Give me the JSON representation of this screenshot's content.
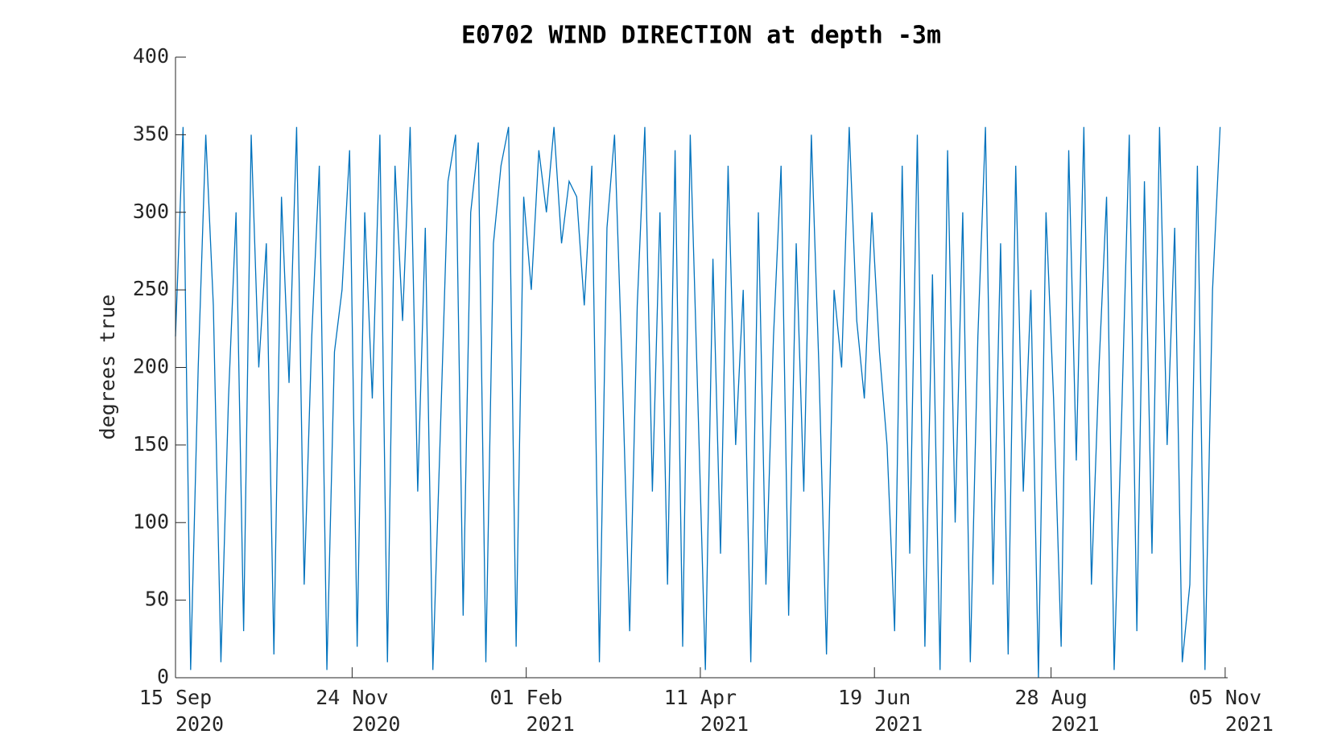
{
  "chart_data": {
    "type": "line",
    "title": "E0702 WIND DIRECTION at depth -3m",
    "ylabel": "degrees true",
    "x": [
      "2020-09-15",
      "2020-09-18",
      "2020-09-21",
      "2020-09-24",
      "2020-09-27",
      "2020-09-30",
      "2020-10-03",
      "2020-10-06",
      "2020-10-09",
      "2020-10-12",
      "2020-10-15",
      "2020-10-18",
      "2020-10-21",
      "2020-10-24",
      "2020-10-27",
      "2020-10-30",
      "2020-11-02",
      "2020-11-05",
      "2020-11-08",
      "2020-11-11",
      "2020-11-14",
      "2020-11-17",
      "2020-11-20",
      "2020-11-23",
      "2020-11-26",
      "2020-11-29",
      "2020-12-02",
      "2020-12-05",
      "2020-12-08",
      "2020-12-11",
      "2020-12-14",
      "2020-12-17",
      "2020-12-20",
      "2020-12-23",
      "2020-12-26",
      "2020-12-29",
      "2021-01-01",
      "2021-01-04",
      "2021-01-07",
      "2021-01-10",
      "2021-01-13",
      "2021-01-16",
      "2021-01-19",
      "2021-01-22",
      "2021-01-25",
      "2021-01-28",
      "2021-01-31",
      "2021-02-03",
      "2021-02-06",
      "2021-02-09",
      "2021-02-12",
      "2021-02-15",
      "2021-02-18",
      "2021-02-21",
      "2021-02-24",
      "2021-02-27",
      "2021-03-02",
      "2021-03-05",
      "2021-03-08",
      "2021-03-11",
      "2021-03-14",
      "2021-03-17",
      "2021-03-20",
      "2021-03-23",
      "2021-03-26",
      "2021-03-29",
      "2021-04-01",
      "2021-04-04",
      "2021-04-07",
      "2021-04-10",
      "2021-04-13",
      "2021-04-16",
      "2021-04-19",
      "2021-04-22",
      "2021-04-25",
      "2021-04-28",
      "2021-05-01",
      "2021-05-04",
      "2021-05-07",
      "2021-05-10",
      "2021-05-13",
      "2021-05-16",
      "2021-05-19",
      "2021-05-22",
      "2021-05-25",
      "2021-05-28",
      "2021-05-31",
      "2021-06-03",
      "2021-06-06",
      "2021-06-09",
      "2021-06-12",
      "2021-06-15",
      "2021-06-18",
      "2021-06-21",
      "2021-06-24",
      "2021-06-27",
      "2021-06-30",
      "2021-07-03",
      "2021-07-06",
      "2021-07-09",
      "2021-07-12",
      "2021-07-15",
      "2021-07-18",
      "2021-07-21",
      "2021-07-24",
      "2021-07-27",
      "2021-07-30",
      "2021-08-02",
      "2021-08-05",
      "2021-08-08",
      "2021-08-11",
      "2021-08-14",
      "2021-08-17",
      "2021-08-20",
      "2021-08-23",
      "2021-08-26",
      "2021-08-29",
      "2021-09-01",
      "2021-09-04",
      "2021-09-07",
      "2021-09-10",
      "2021-09-13",
      "2021-09-16",
      "2021-09-19",
      "2021-09-22",
      "2021-09-25",
      "2021-09-28",
      "2021-10-01",
      "2021-10-04",
      "2021-10-07",
      "2021-10-10",
      "2021-10-13",
      "2021-10-16",
      "2021-10-19",
      "2021-10-22",
      "2021-10-25",
      "2021-10-28",
      "2021-10-31",
      "2021-11-03"
    ],
    "series": [
      {
        "name": "wind direction",
        "color": "#0072bd",
        "values": [
          220,
          355,
          5,
          200,
          350,
          240,
          10,
          180,
          300,
          30,
          350,
          200,
          280,
          15,
          310,
          190,
          355,
          60,
          220,
          330,
          5,
          210,
          250,
          340,
          20,
          300,
          180,
          350,
          10,
          330,
          230,
          355,
          120,
          290,
          5,
          160,
          320,
          350,
          40,
          300,
          345,
          10,
          280,
          330,
          355,
          20,
          310,
          250,
          340,
          300,
          355,
          280,
          320,
          310,
          240,
          330,
          10,
          290,
          350,
          200,
          30,
          240,
          355,
          120,
          300,
          60,
          340,
          20,
          350,
          180,
          5,
          270,
          80,
          330,
          150,
          250,
          10,
          300,
          60,
          220,
          330,
          40,
          280,
          120,
          350,
          200,
          15,
          250,
          200,
          355,
          230,
          180,
          300,
          210,
          150,
          30,
          330,
          80,
          350,
          20,
          260,
          5,
          340,
          100,
          300,
          10,
          220,
          355,
          60,
          280,
          15,
          330,
          120,
          250,
          0,
          300,
          180,
          20,
          340,
          140,
          355,
          60,
          200,
          310,
          5,
          170,
          350,
          30,
          320,
          80,
          355,
          150,
          290,
          10,
          60,
          330,
          5,
          250,
          355
        ]
      }
    ],
    "xlim": [
      "2020-09-15",
      "2021-11-06"
    ],
    "xticks": [
      {
        "value": "2020-09-15",
        "label": [
          "15 Sep",
          "2020"
        ]
      },
      {
        "value": "2020-11-24",
        "label": [
          "24 Nov",
          "2020"
        ]
      },
      {
        "value": "2021-02-01",
        "label": [
          "01 Feb",
          "2021"
        ]
      },
      {
        "value": "2021-04-11",
        "label": [
          "11 Apr",
          "2021"
        ]
      },
      {
        "value": "2021-06-19",
        "label": [
          "19 Jun",
          "2021"
        ]
      },
      {
        "value": "2021-08-28",
        "label": [
          "28 Aug",
          "2021"
        ]
      },
      {
        "value": "2021-11-05",
        "label": [
          "05 Nov",
          "2021"
        ]
      }
    ],
    "ylim": [
      0,
      400
    ],
    "yticks": [
      0,
      50,
      100,
      150,
      200,
      250,
      300,
      350,
      400
    ],
    "grid": false
  }
}
